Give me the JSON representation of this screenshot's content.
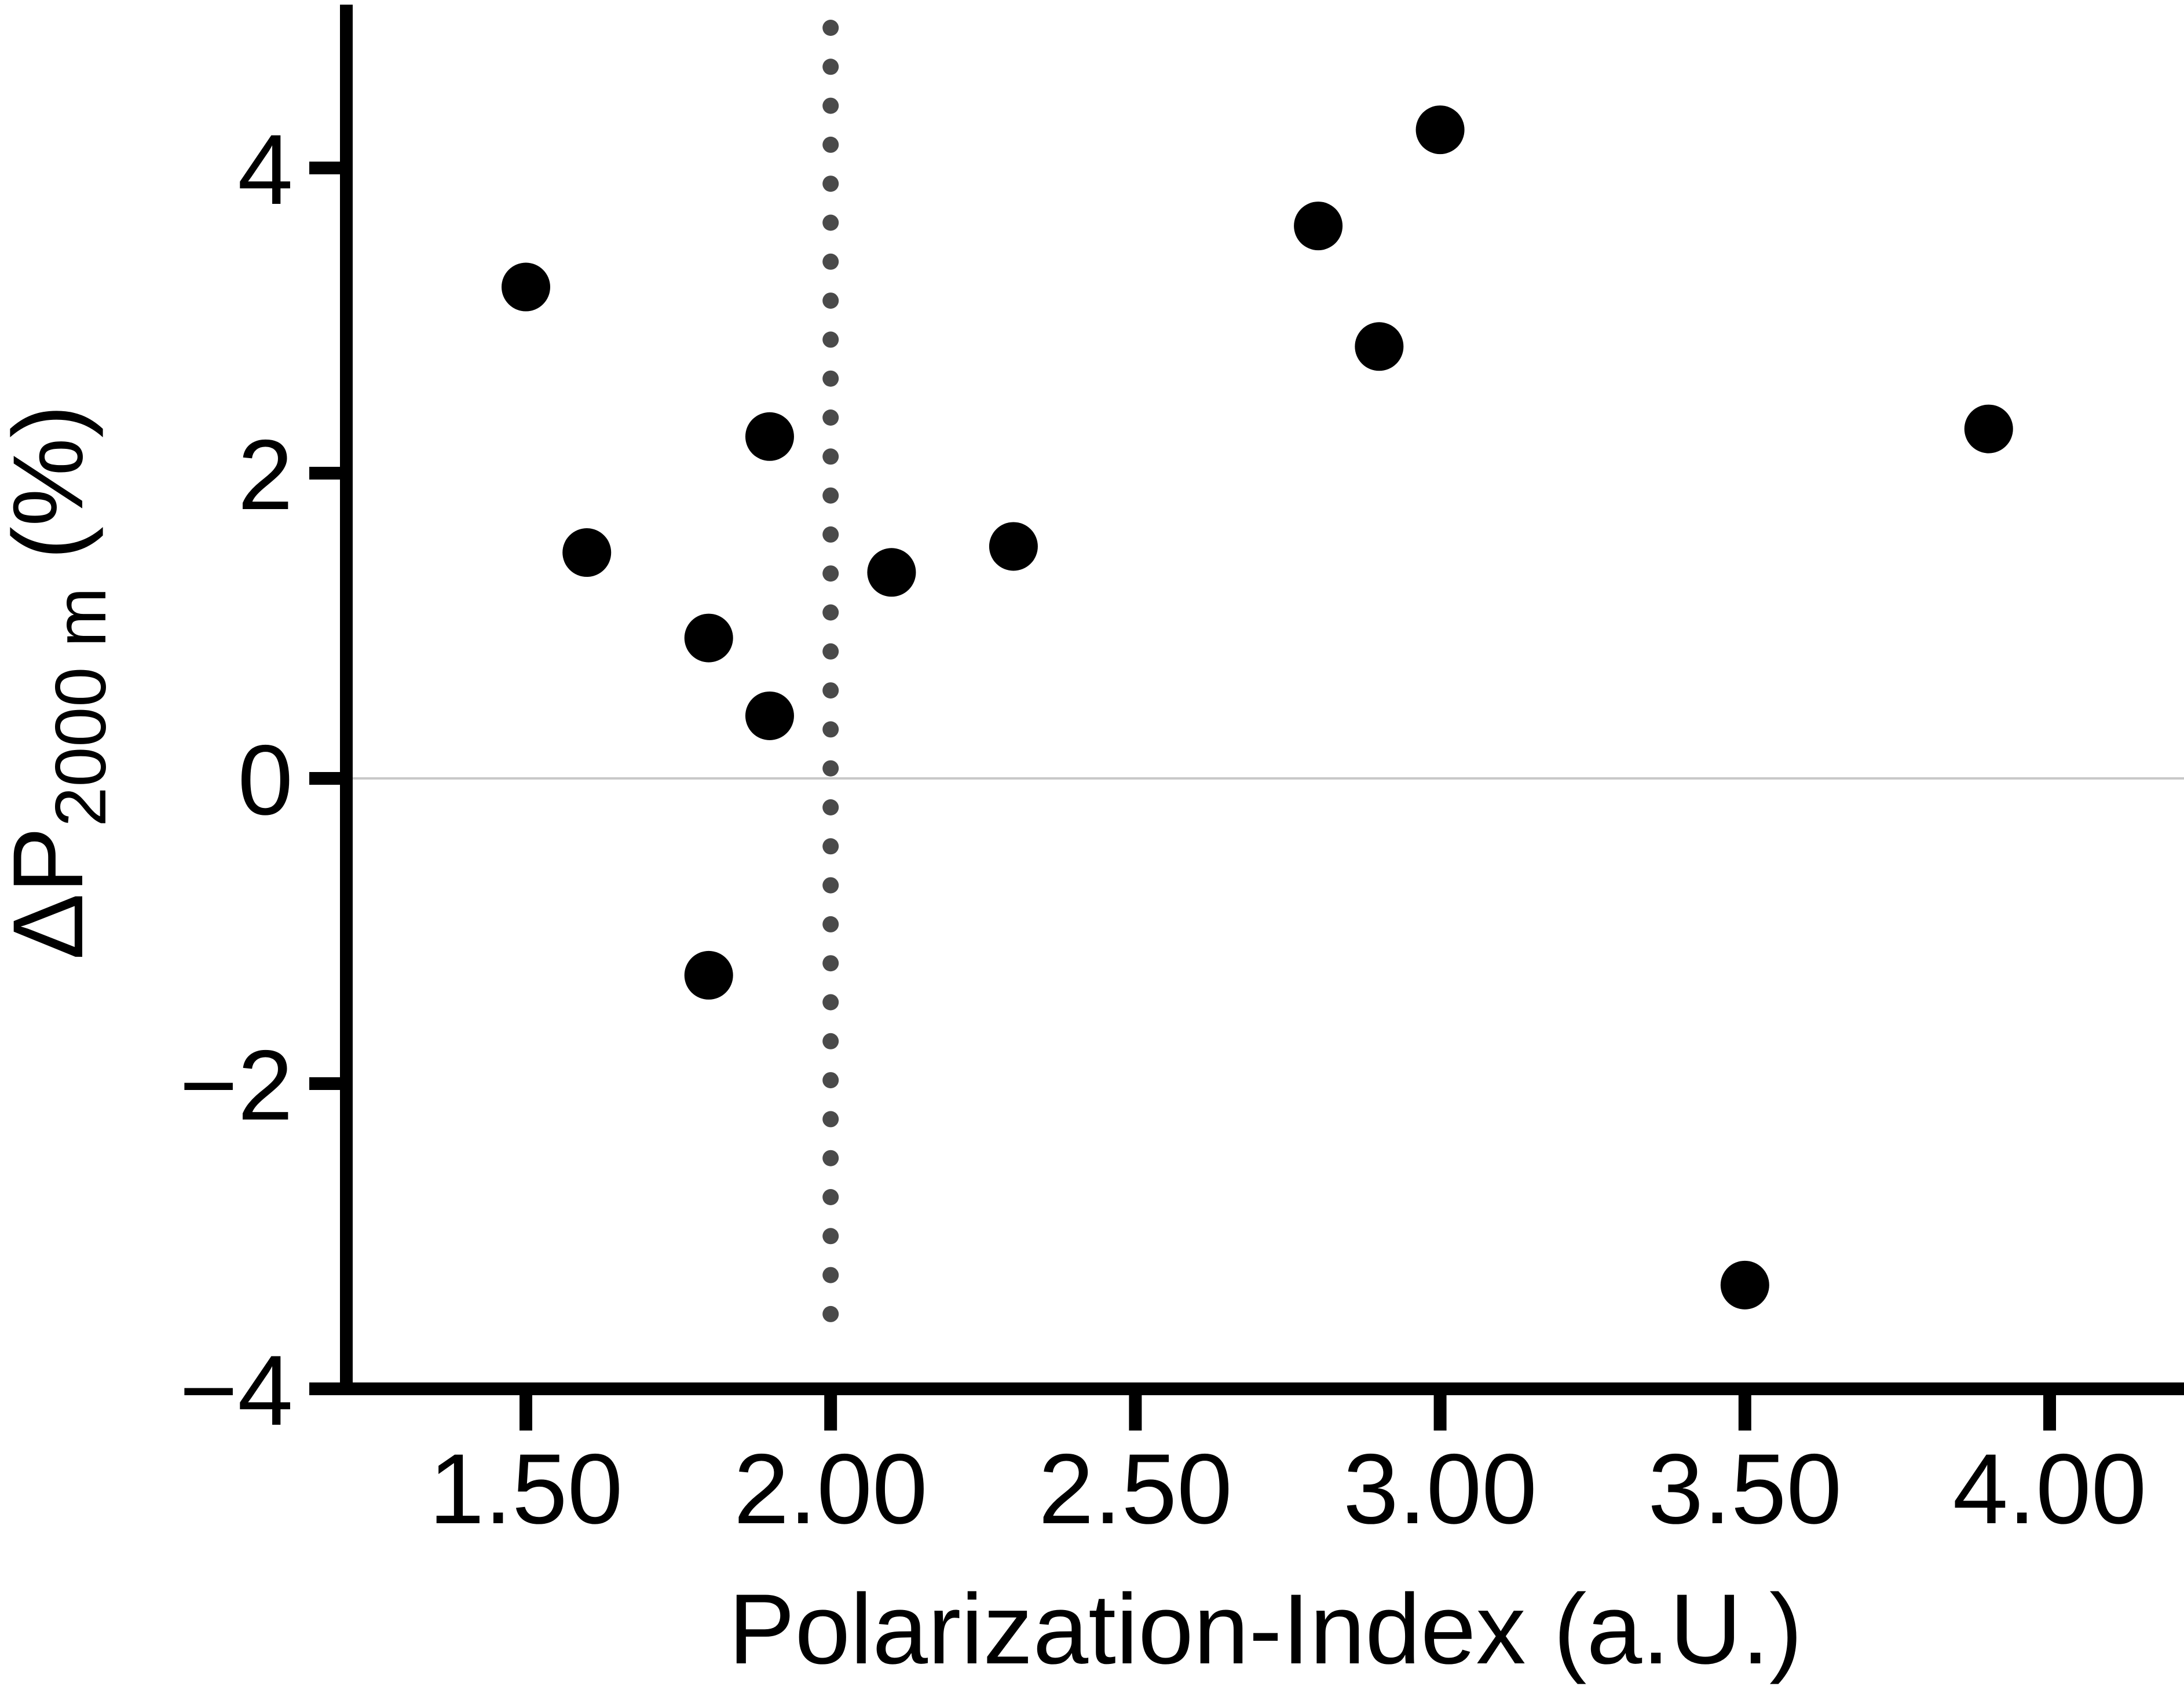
{
  "chart_data": {
    "type": "scatter",
    "xlabel": "Polarization-Index (a.U.)",
    "ylabel": {
      "prefix": "ΔP",
      "subscript": "2000 m",
      "suffix": " (%)"
    },
    "xlim": [
      1.22,
      4.22
    ],
    "ylim": [
      -4,
      5
    ],
    "x_ticks": [
      1.5,
      2.0,
      2.5,
      3.0,
      3.5,
      4.0
    ],
    "x_tick_labels": [
      "1.50",
      "2.00",
      "2.50",
      "3.00",
      "3.50",
      "4.00"
    ],
    "y_ticks": [
      -4,
      -2,
      0,
      2,
      4
    ],
    "y_tick_labels": [
      "−4",
      "−2",
      "0",
      "2",
      "4"
    ],
    "reference_lines": [
      {
        "orientation": "vertical",
        "x": 2.0,
        "style": "dotted",
        "color": "#4a4a4a"
      },
      {
        "orientation": "horizontal",
        "y": 0,
        "style": "solid",
        "color": "#c8c8c8"
      }
    ],
    "grid": false,
    "legend": "none",
    "marker_color": "#000000",
    "points": [
      {
        "x": 1.5,
        "y": 3.22
      },
      {
        "x": 1.6,
        "y": 1.48
      },
      {
        "x": 1.8,
        "y": 0.92
      },
      {
        "x": 1.8,
        "y": -1.29
      },
      {
        "x": 1.9,
        "y": 2.24
      },
      {
        "x": 1.9,
        "y": 0.41
      },
      {
        "x": 2.1,
        "y": 1.35
      },
      {
        "x": 2.3,
        "y": 1.52
      },
      {
        "x": 2.8,
        "y": 3.62
      },
      {
        "x": 2.9,
        "y": 2.83
      },
      {
        "x": 3.0,
        "y": 4.25
      },
      {
        "x": 3.5,
        "y": -3.32
      },
      {
        "x": 3.9,
        "y": 2.29
      }
    ]
  }
}
